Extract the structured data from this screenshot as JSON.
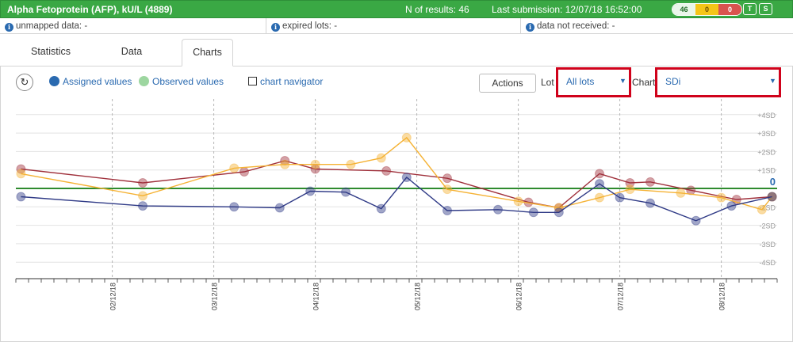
{
  "header": {
    "title": "Alpha Fetoprotein (AFP), kU/L (4889)",
    "n_results": "N of results: 46",
    "last_submission": "Last submission: 12/07/18 16:52:00",
    "badges": [
      "46",
      "0",
      "0"
    ],
    "buttons": [
      "T",
      "S"
    ]
  },
  "info": {
    "unmapped": "unmapped data: -",
    "expired": "expired lots: -",
    "not_received": "data not received: -"
  },
  "tabs": [
    "Statistics",
    "Data",
    "Charts"
  ],
  "active_tab": "Charts",
  "toolbar": {
    "refresh_icon": "refresh-icon",
    "assigned_label": "Assigned values",
    "observed_label": "Observed values",
    "navigator_label": "chart navigator",
    "actions_label": "Actions",
    "lot_label": "Lot",
    "lot_value": "All lots",
    "chart_label": "Chart",
    "chart_value": "SDi"
  },
  "colors": {
    "title_green": "#3aa844",
    "assigned": "#2a6ab0",
    "observed": "#9dd6a0",
    "series_navy": "#2f3a86",
    "series_red": "#a0313c",
    "series_orange": "#f5b234",
    "zero_line": "#2e8b2e",
    "highlight": "#d0021b"
  },
  "chart_data": {
    "type": "line",
    "ylabel": "",
    "ylim": [
      -4.5,
      4.5
    ],
    "y_ticks": [
      "+4SD",
      "+3SD",
      "+2SD",
      "+1SD",
      "0",
      "-1SD",
      "-2SD",
      "-3SD",
      "-4SD"
    ],
    "x_ticks": [
      "02/12/18",
      "03/12/18",
      "04/12/18",
      "05/12/18",
      "06/12/18",
      "07/12/18",
      "08/12/18"
    ],
    "x_tick_days": [
      2,
      3,
      4,
      5,
      6,
      7,
      8
    ],
    "series": [
      {
        "color": "#a0313c",
        "x": [
          1.1,
          2.3,
          3.3,
          3.7,
          4.0,
          4.7,
          5.3,
          6.1,
          6.4,
          6.8,
          7.1,
          7.3,
          7.7,
          8.15,
          8.5
        ],
        "y": [
          1.05,
          0.3,
          0.9,
          1.5,
          1.05,
          0.95,
          0.55,
          -0.75,
          -1.05,
          0.8,
          0.3,
          0.35,
          -0.1,
          -0.6,
          -0.45
        ]
      },
      {
        "color": "#f5b234",
        "x": [
          1.1,
          2.3,
          3.2,
          3.7,
          4.0,
          4.35,
          4.65,
          4.9,
          5.3,
          6.0,
          6.4,
          6.8,
          7.1,
          7.6,
          8.0,
          8.4,
          8.5
        ],
        "y": [
          0.8,
          -0.4,
          1.1,
          1.3,
          1.3,
          1.3,
          1.65,
          2.75,
          -0.05,
          -0.7,
          -1.05,
          -0.5,
          -0.05,
          -0.25,
          -0.5,
          -1.15,
          -0.45
        ]
      },
      {
        "color": "#2f3a86",
        "x": [
          1.1,
          2.3,
          3.2,
          3.65,
          3.95,
          4.3,
          4.65,
          4.9,
          5.3,
          5.8,
          6.15,
          6.4,
          6.8,
          7.0,
          7.3,
          7.75,
          8.1,
          8.5
        ],
        "y": [
          -0.45,
          -0.95,
          -1.0,
          -1.05,
          -0.15,
          -0.2,
          -1.1,
          0.6,
          -1.2,
          -1.15,
          -1.3,
          -1.3,
          0.25,
          -0.5,
          -0.8,
          -1.75,
          -0.95,
          -0.45
        ]
      }
    ]
  }
}
